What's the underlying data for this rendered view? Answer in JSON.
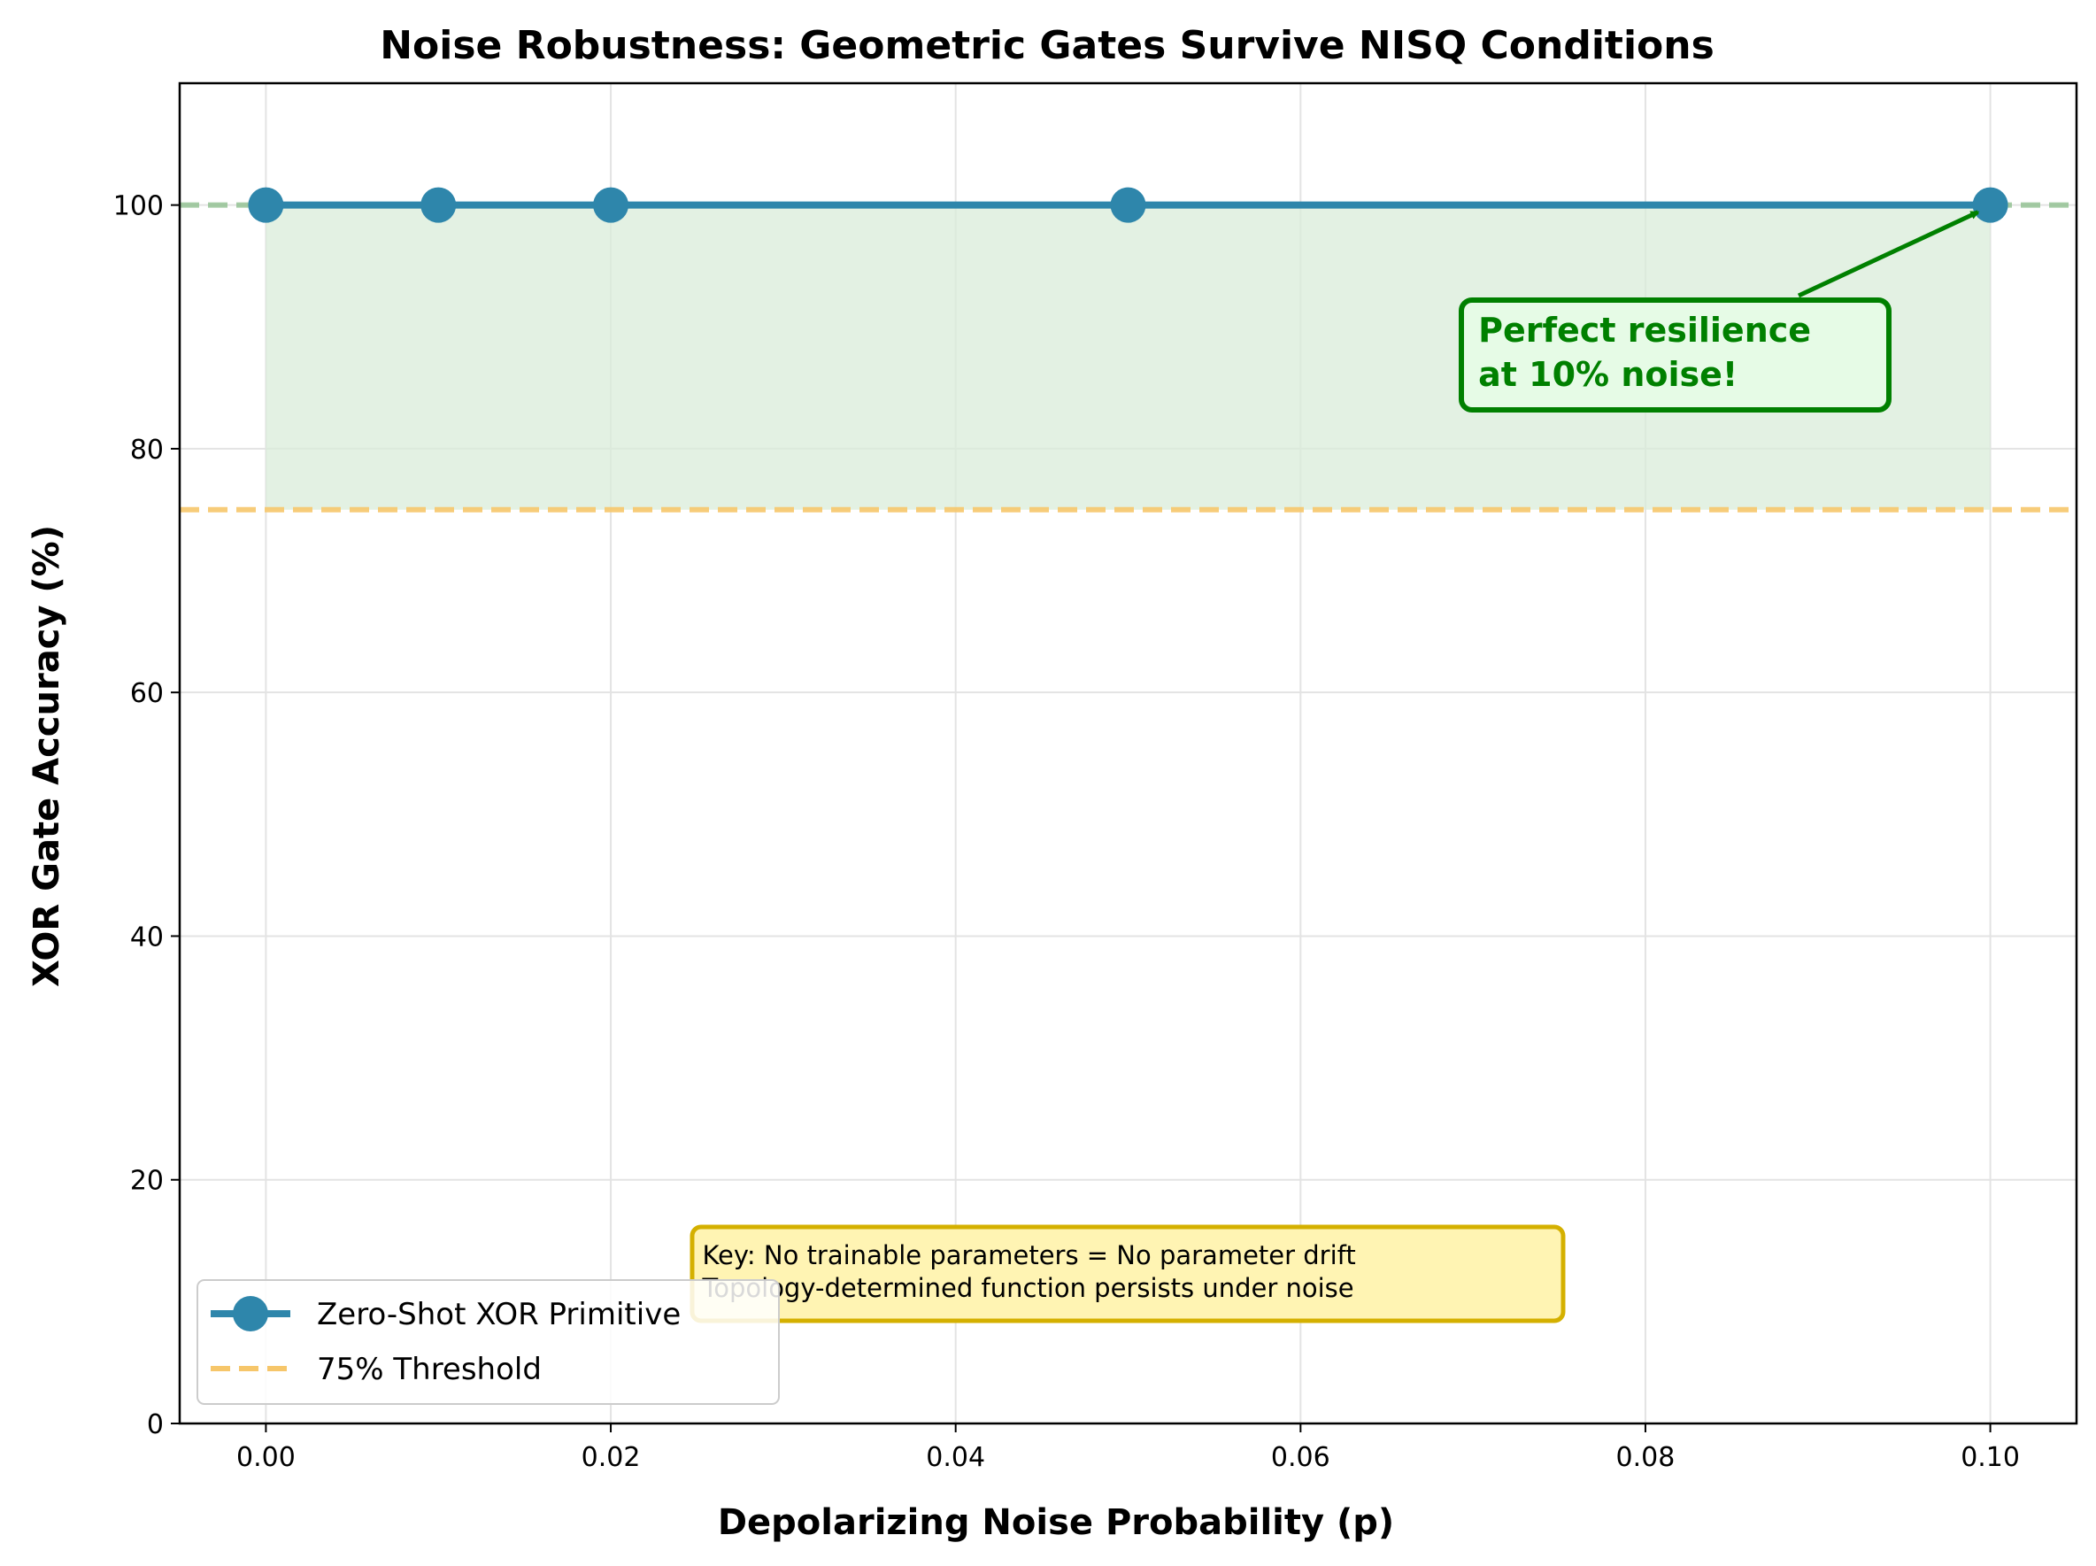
{
  "chart_data": {
    "type": "line",
    "title": "Noise Robustness: Geometric Gates Survive NISQ Conditions",
    "xlabel": "Depolarizing Noise Probability (p)",
    "ylabel": "XOR Gate Accuracy (%)",
    "xlim": [
      -0.005,
      0.105
    ],
    "ylim": [
      0,
      110
    ],
    "x_ticks": [
      0.0,
      0.02,
      0.04,
      0.06,
      0.08,
      0.1
    ],
    "x_tick_labels": [
      "0.00",
      "0.02",
      "0.04",
      "0.06",
      "0.08",
      "0.10"
    ],
    "y_ticks": [
      0,
      20,
      40,
      60,
      80,
      100
    ],
    "y_tick_labels": [
      "0",
      "20",
      "40",
      "60",
      "80",
      "100"
    ],
    "grid": true,
    "legend_position": "lower-left",
    "series": [
      {
        "name": "Zero-Shot XOR Primitive",
        "x": [
          0.0,
          0.01,
          0.02,
          0.05,
          0.1
        ],
        "y": [
          100,
          100,
          100,
          100,
          100
        ],
        "color": "#2e86ab",
        "marker": "circle"
      }
    ],
    "reference_lines": [
      {
        "name": "75% Threshold",
        "y": 75,
        "color": "#f6c66a",
        "style": "dashed"
      },
      {
        "y": 100,
        "color": "#8fbf8f",
        "style": "dashed"
      }
    ],
    "fill_between": {
      "y_low": 75,
      "y_high": 100,
      "color": "#d9ecd9"
    },
    "annotations": [
      {
        "text_lines": [
          "Perfect resilience",
          "at 10% noise!"
        ],
        "target": [
          0.1,
          100
        ],
        "text_anchor": [
          0.07,
          88
        ],
        "color": "#008000"
      },
      {
        "text_lines": [
          "Key: No trainable parameters = No parameter drift",
          "Topology-determined function persists under noise"
        ],
        "anchor": [
          0.025,
          12
        ],
        "box_color": "#fff4b3",
        "border_color": "#d4b000"
      }
    ]
  }
}
